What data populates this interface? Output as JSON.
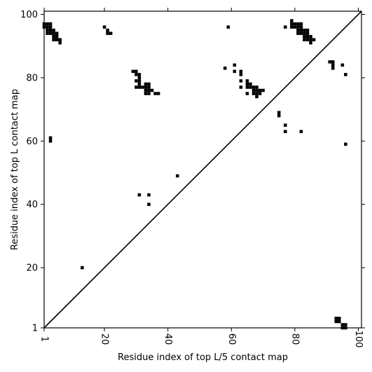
{
  "chart_data": {
    "type": "heatmap",
    "xlabel": "Residue index of top L/5 contact map",
    "ylabel": "Residue index of top L contact map",
    "xlim": [
      1,
      101
    ],
    "ylim": [
      1,
      101
    ],
    "x_ticks": [
      {
        "value": 1,
        "label": "1"
      },
      {
        "value": 20,
        "label": "20"
      },
      {
        "value": 40,
        "label": "40"
      },
      {
        "value": 60,
        "label": "60"
      },
      {
        "value": 80,
        "label": "80"
      },
      {
        "value": 100,
        "label": "100"
      }
    ],
    "y_ticks": [
      {
        "value": 1,
        "label": "1"
      },
      {
        "value": 20,
        "label": "20"
      },
      {
        "value": 40,
        "label": "40"
      },
      {
        "value": 60,
        "label": "60"
      },
      {
        "value": 80,
        "label": "80"
      },
      {
        "value": 100,
        "label": "100"
      }
    ],
    "diagonal": {
      "from": [
        1,
        1
      ],
      "to": [
        101,
        101
      ]
    },
    "upper_triangle_contacts": [
      [
        1,
        97
      ],
      [
        1,
        96
      ],
      [
        2,
        97
      ],
      [
        2,
        96
      ],
      [
        3,
        97
      ],
      [
        3,
        96
      ],
      [
        3,
        95
      ],
      [
        3,
        94
      ],
      [
        2,
        95
      ],
      [
        2,
        94
      ],
      [
        4,
        95
      ],
      [
        4,
        94
      ],
      [
        5,
        94
      ],
      [
        5,
        93
      ],
      [
        4,
        93
      ],
      [
        4,
        92
      ],
      [
        5,
        92
      ],
      [
        6,
        92
      ],
      [
        6,
        91
      ],
      [
        3,
        61
      ],
      [
        3,
        60
      ],
      [
        20,
        96
      ],
      [
        21,
        95
      ],
      [
        21,
        94
      ],
      [
        22,
        94
      ],
      [
        29,
        82
      ],
      [
        30,
        82
      ],
      [
        30,
        81
      ],
      [
        31,
        81
      ],
      [
        31,
        80
      ],
      [
        30,
        79
      ],
      [
        31,
        79
      ],
      [
        31,
        78
      ],
      [
        30,
        77
      ],
      [
        31,
        77
      ],
      [
        32,
        77
      ],
      [
        33,
        78
      ],
      [
        33,
        77
      ],
      [
        34,
        78
      ],
      [
        34,
        77
      ],
      [
        33,
        76
      ],
      [
        34,
        76
      ],
      [
        35,
        76
      ],
      [
        33,
        75
      ],
      [
        34,
        75
      ],
      [
        36,
        75
      ],
      [
        37,
        75
      ],
      [
        59,
        96
      ],
      [
        58,
        83
      ],
      [
        61,
        84
      ],
      [
        61,
        82
      ],
      [
        63,
        82
      ],
      [
        63,
        81
      ],
      [
        63,
        79
      ],
      [
        63,
        77
      ],
      [
        65,
        79
      ],
      [
        65,
        78
      ],
      [
        66,
        78
      ],
      [
        65,
        77
      ],
      [
        66,
        77
      ],
      [
        67,
        77
      ],
      [
        68,
        77
      ],
      [
        67,
        76
      ],
      [
        68,
        76
      ],
      [
        69,
        76
      ],
      [
        70,
        76
      ],
      [
        65,
        75
      ],
      [
        67,
        75
      ],
      [
        68,
        75
      ],
      [
        69,
        75
      ],
      [
        68,
        74
      ],
      [
        75,
        69
      ],
      [
        75,
        68
      ],
      [
        77,
        65
      ],
      [
        77,
        63
      ],
      [
        82,
        63
      ],
      [
        77,
        96
      ],
      [
        79,
        98
      ],
      [
        79,
        97
      ],
      [
        80,
        97
      ],
      [
        79,
        96
      ],
      [
        80,
        96
      ],
      [
        81,
        97
      ],
      [
        82,
        97
      ],
      [
        81,
        96
      ],
      [
        82,
        96
      ],
      [
        81,
        95
      ],
      [
        81,
        94
      ],
      [
        82,
        95
      ],
      [
        82,
        94
      ],
      [
        83,
        95
      ],
      [
        84,
        95
      ],
      [
        83,
        94
      ],
      [
        84,
        94
      ],
      [
        83,
        93
      ],
      [
        84,
        93
      ],
      [
        85,
        93
      ],
      [
        83,
        92
      ],
      [
        84,
        92
      ],
      [
        85,
        92
      ],
      [
        86,
        92
      ],
      [
        85,
        91
      ],
      [
        91,
        85
      ],
      [
        92,
        85
      ],
      [
        92,
        84
      ],
      [
        92,
        83
      ],
      [
        95,
        84
      ],
      [
        96,
        81
      ],
      [
        96,
        59
      ],
      [
        31,
        43
      ],
      [
        34,
        43
      ],
      [
        34,
        40
      ],
      [
        43,
        49
      ],
      [
        13,
        20
      ]
    ],
    "lower_triangle_contacts": [
      [
        93,
        4
      ],
      [
        94,
        4
      ],
      [
        93,
        3
      ],
      [
        94,
        3
      ],
      [
        95,
        2
      ],
      [
        96,
        2
      ],
      [
        95,
        1
      ],
      [
        96,
        1
      ]
    ]
  }
}
